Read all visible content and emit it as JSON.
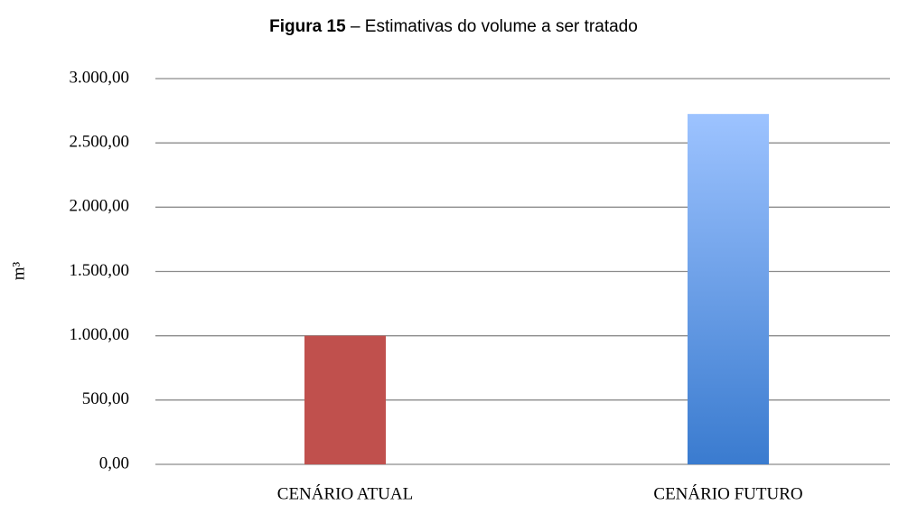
{
  "chart_data": {
    "type": "bar",
    "figure_label": "Figura 15",
    "title": "– Estimativas do volume a ser tratado",
    "ylabel": "m³",
    "categories": [
      "CENÁRIO ATUAL",
      "CENÁRIO FUTURO"
    ],
    "values": [
      1000,
      2725
    ],
    "colors": [
      "#c0504d",
      [
        "#9dc3ff",
        "#3a7bcf"
      ]
    ],
    "ylim": [
      0,
      3000
    ],
    "yticks": [
      {
        "value": 0,
        "label": "0,00"
      },
      {
        "value": 500,
        "label": "500,00"
      },
      {
        "value": 1000,
        "label": "1.000,00"
      },
      {
        "value": 1500,
        "label": "1.500,00"
      },
      {
        "value": 2000,
        "label": "2.000,00"
      },
      {
        "value": 2500,
        "label": "2.500,00"
      },
      {
        "value": 3000,
        "label": "3.000,00"
      }
    ],
    "grid": true
  }
}
